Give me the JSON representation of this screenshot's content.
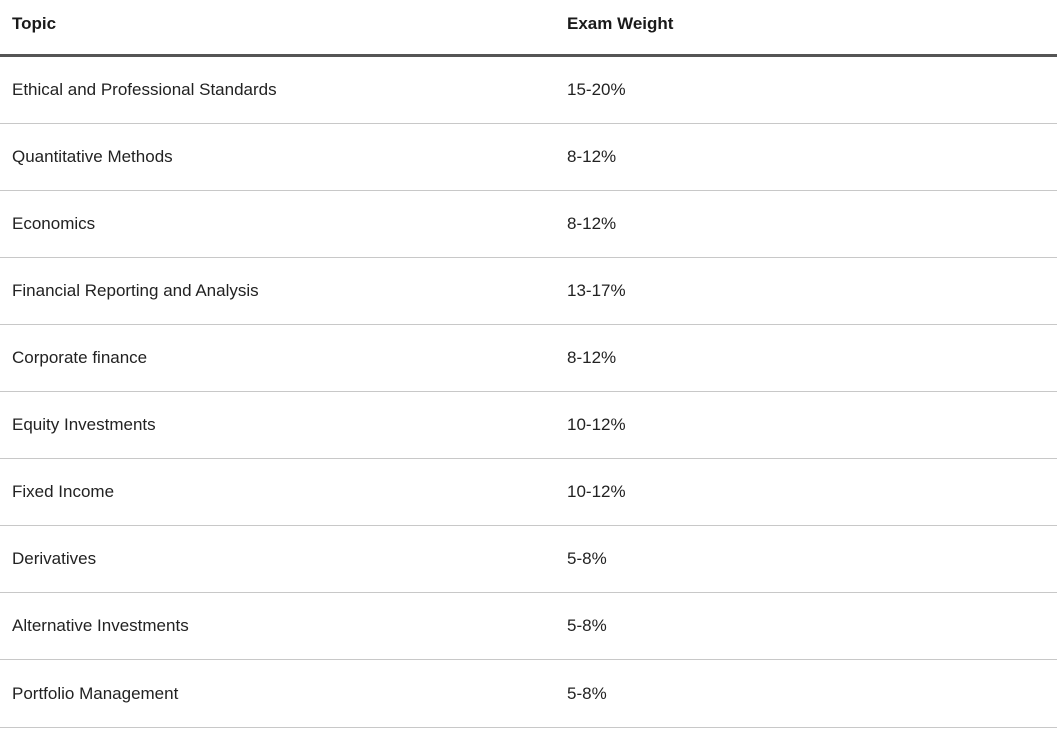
{
  "table": {
    "headers": [
      "Topic",
      "Exam Weight"
    ],
    "rows": [
      [
        "Ethical and Professional Standards",
        "15-20%"
      ],
      [
        "Quantitative Methods",
        "8-12%"
      ],
      [
        "Economics",
        "8-12%"
      ],
      [
        "Financial Reporting and Analysis",
        "13-17%"
      ],
      [
        "Corporate finance",
        "8-12%"
      ],
      [
        "Equity Investments",
        "10-12%"
      ],
      [
        "Fixed Income",
        "10-12%"
      ],
      [
        "Derivatives",
        "5-8%"
      ],
      [
        "Alternative Investments",
        "5-8%"
      ],
      [
        "Portfolio Management",
        "5-8%"
      ]
    ]
  }
}
